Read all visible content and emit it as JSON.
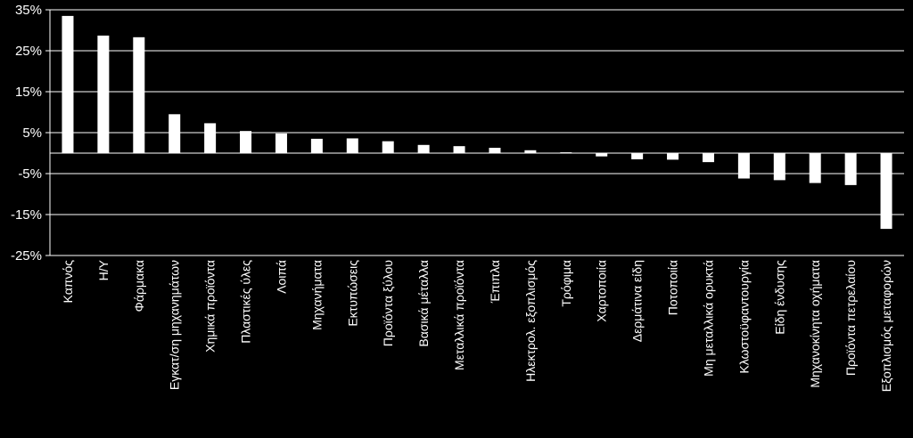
{
  "chart_data": {
    "type": "bar",
    "title": "",
    "xlabel": "",
    "ylabel": "",
    "ylim": [
      -25,
      35
    ],
    "yticks": [
      -25,
      -15,
      -5,
      5,
      15,
      25,
      35
    ],
    "ytick_labels": [
      "-25%",
      "-15%",
      "-5%",
      "5%",
      "15%",
      "25%",
      "35%"
    ],
    "grid": true,
    "colors": {
      "background": "#000000",
      "bar": "#ffffff",
      "axis": "#ffffff",
      "grid": "#ffffff",
      "text": "#ffffff"
    },
    "categories": [
      "Καπνός",
      "Η/Υ",
      "Φάρμακα",
      "Εγκατ/ση μηχανημάτων",
      "Χημικά προϊόντα",
      "Πλαστικές ύλες",
      "Λοιπά",
      "Μηχανήματα",
      "Εκτυπώσεις",
      "Προϊόντα ξύλου",
      "Βασικά μέταλλα",
      "Μεταλλικά προϊόντα",
      "Έπιπλα",
      "Ηλεκτρολ. εξοπλισμός",
      "Τρόφιμα",
      "Χαρτοποιία",
      "Δερμάτινα είδη",
      "Ποτοποιία",
      "Μη μεταλλικά ορυκτά",
      "Κλωστοϋφαντουργία",
      "Είδη ένδυσης",
      "Μηχανοκίνητα οχήματα",
      "Προϊόντα πετρελαίου",
      "Εξοπλισμός μεταφορών"
    ],
    "values": [
      33.5,
      28.7,
      28.3,
      9.5,
      7.3,
      5.4,
      4.8,
      3.5,
      3.6,
      2.9,
      2.0,
      1.7,
      1.3,
      0.7,
      0.2,
      -0.8,
      -1.5,
      -1.6,
      -2.2,
      -6.2,
      -6.6,
      -7.3,
      -7.8,
      -18.5
    ]
  }
}
